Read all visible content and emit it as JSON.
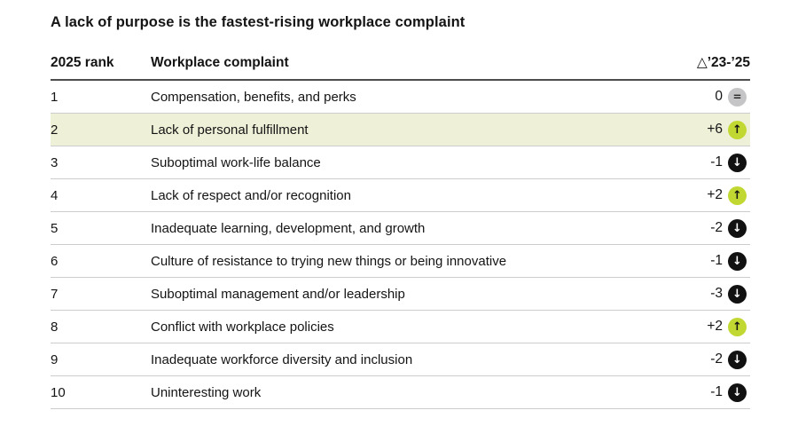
{
  "title": "A lack of purpose is the fastest-rising workplace complaint",
  "table": {
    "headers": {
      "rank": "2025 rank",
      "complaint": "Workplace complaint",
      "delta": "△’23-’25"
    },
    "rows": [
      {
        "rank": "1",
        "complaint": "Compensation, benefits, and perks",
        "delta": "0",
        "direction": "same",
        "highlighted": false
      },
      {
        "rank": "2",
        "complaint": "Lack of personal fulfillment",
        "delta": "+6",
        "direction": "up",
        "highlighted": true
      },
      {
        "rank": "3",
        "complaint": "Suboptimal work-life balance",
        "delta": "-1",
        "direction": "down",
        "highlighted": false
      },
      {
        "rank": "4",
        "complaint": "Lack of respect and/or recognition",
        "delta": "+2",
        "direction": "up",
        "highlighted": false
      },
      {
        "rank": "5",
        "complaint": "Inadequate learning, development, and growth",
        "delta": "-2",
        "direction": "down",
        "highlighted": false
      },
      {
        "rank": "6",
        "complaint": "Culture of resistance to trying new things or being innovative",
        "delta": "-1",
        "direction": "down",
        "highlighted": false
      },
      {
        "rank": "7",
        "complaint": "Suboptimal management and/or leadership",
        "delta": "-3",
        "direction": "down",
        "highlighted": false
      },
      {
        "rank": "8",
        "complaint": "Conflict with workplace policies",
        "delta": "+2",
        "direction": "up",
        "highlighted": false
      },
      {
        "rank": "9",
        "complaint": "Inadequate workforce diversity and inclusion",
        "delta": "-2",
        "direction": "down",
        "highlighted": false
      },
      {
        "rank": "10",
        "complaint": "Uninteresting work",
        "delta": "-1",
        "direction": "down",
        "highlighted": false
      }
    ]
  },
  "icons": {
    "up": "↑",
    "down": "↓",
    "same": "="
  },
  "colors": {
    "highlight_row": "#eef0d8",
    "up_circle": "#c2d832",
    "down_circle": "#111111",
    "same_circle": "#c5c5c7",
    "separator": "#cccccc",
    "header_rule": "#4d4d4d",
    "text": "#141414"
  },
  "chart_data": {
    "type": "table",
    "title": "A lack of purpose is the fastest-rising workplace complaint",
    "columns": [
      "2025 rank",
      "Workplace complaint",
      "△’23-’25"
    ],
    "categories": [
      "Compensation, benefits, and perks",
      "Lack of personal fulfillment",
      "Suboptimal work-life balance",
      "Lack of respect and/or recognition",
      "Inadequate learning, development, and growth",
      "Culture of resistance to trying new things or being innovative",
      "Suboptimal management and/or leadership",
      "Conflict with workplace policies",
      "Inadequate workforce diversity and inclusion",
      "Uninteresting work"
    ],
    "ranks_2025": [
      1,
      2,
      3,
      4,
      5,
      6,
      7,
      8,
      9,
      10
    ],
    "delta_23_25": [
      0,
      6,
      -1,
      2,
      -2,
      -1,
      -3,
      2,
      -2,
      -1
    ],
    "highlighted_rank": 2
  }
}
